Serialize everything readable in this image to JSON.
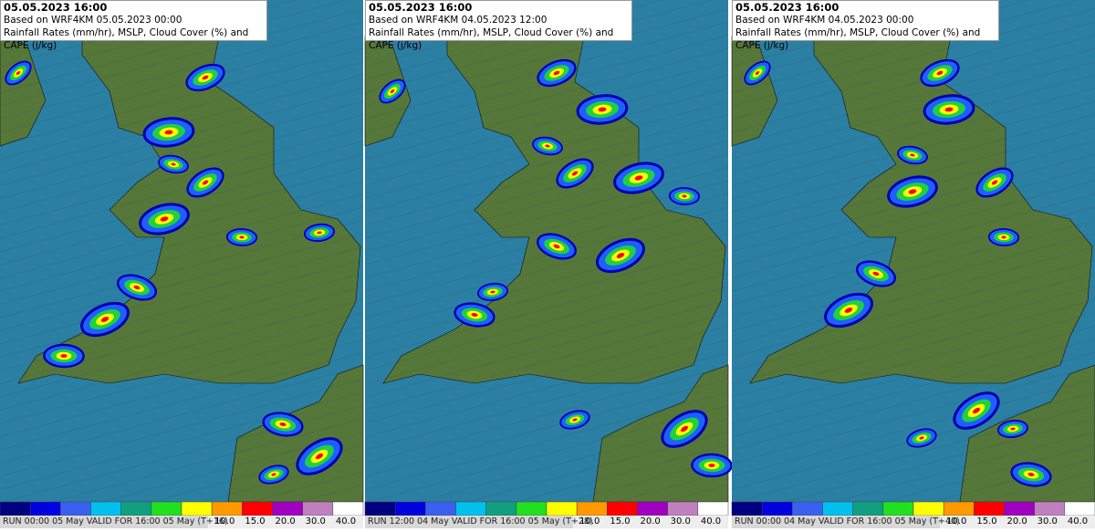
{
  "panels": [
    {
      "title": "05.05.2023 16:00",
      "based_on": "Based on WRF4KM 05.05.2023 00:00",
      "subtitle": "Rainfall Rates (mm/hr), MSLP, Cloud Cover (%) and CAPE (j/kg)",
      "run": "RUN 00:00 05 May VALID FOR 16:00 05 May (T+16)"
    },
    {
      "title": "05.05.2023 16:00",
      "based_on": "Based on WRF4KM 04.05.2023 12:00",
      "subtitle": "Rainfall Rates (mm/hr), MSLP, Cloud Cover (%) and CAPE (j/kg)",
      "run": "RUN 12:00 04 May VALID FOR 16:00 05 May (T+28)"
    },
    {
      "title": "05.05.2023 16:00",
      "based_on": "Based on WRF4KM 04.05.2023 00:00",
      "subtitle": "Rainfall Rates (mm/hr), MSLP, Cloud Cover (%) and CAPE (j/kg)",
      "run": "RUN 00:00 04 May VALID FOR 16:00 05 May (T+40)"
    }
  ],
  "legend": {
    "colors": [
      "#000080",
      "#0000e0",
      "#3a60f0",
      "#00c0f0",
      "#10a080",
      "#20e020",
      "#ffff00",
      "#ff9900",
      "#ff0000",
      "#a000c0",
      "#c080c0",
      "#ffffff"
    ],
    "labels": [
      "10.0",
      "15.0",
      "20.0",
      "30.0",
      "40.0"
    ]
  }
}
